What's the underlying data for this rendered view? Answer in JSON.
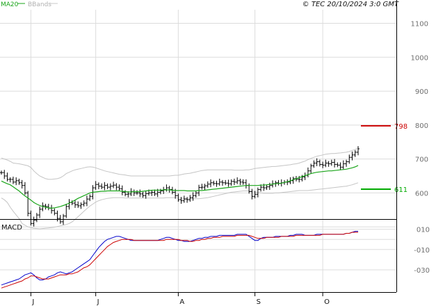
{
  "header": {
    "copyright": "© TEC 20/10/2024 3:0 GMT",
    "legend": [
      {
        "label": "MA20",
        "color": "#1aa51a"
      },
      {
        "label": "BBands",
        "color": "#b0b0b0"
      }
    ]
  },
  "chart_data": [
    {
      "type": "ohlc",
      "panel": "price",
      "yaxis_ticks": [
        600,
        700,
        800,
        900,
        1000,
        1100
      ],
      "yaxis_labels": [
        "600",
        "700",
        "800",
        "900",
        "1000",
        "1100"
      ],
      "ylim": [
        525,
        1140
      ],
      "xaxis_labels": [
        "J",
        "J",
        "A",
        "S",
        "O"
      ],
      "xaxis_label_index": [
        10,
        32,
        60,
        86,
        109
      ],
      "levels": [
        {
          "value": 798,
          "label": "798",
          "color": "#cc0000"
        },
        {
          "value": 611,
          "label": "611",
          "color": "#00aa00"
        }
      ],
      "close": [
        660,
        650,
        640,
        640,
        632,
        636,
        630,
        622,
        600,
        540,
        510,
        520,
        535,
        552,
        562,
        560,
        555,
        548,
        540,
        525,
        515,
        532,
        560,
        572,
        570,
        565,
        562,
        566,
        570,
        582,
        590,
        615,
        625,
        620,
        617,
        622,
        617,
        620,
        623,
        617,
        612,
        602,
        596,
        597,
        604,
        600,
        600,
        597,
        592,
        598,
        600,
        602,
        597,
        602,
        606,
        610,
        615,
        610,
        602,
        592,
        580,
        577,
        582,
        580,
        586,
        592,
        600,
        616,
        617,
        621,
        626,
        630,
        628,
        627,
        632,
        630,
        629,
        627,
        634,
        632,
        636,
        632,
        630,
        622,
        604,
        590,
        596,
        610,
        617,
        615,
        618,
        622,
        627,
        630,
        628,
        630,
        632,
        632,
        636,
        642,
        640,
        640,
        647,
        652,
        665,
        680,
        688,
        692,
        684,
        682,
        688,
        686,
        690,
        684,
        682,
        676,
        686,
        692,
        705,
        712,
        720,
        730
      ],
      "ma20": [
        635,
        631,
        627,
        624,
        618,
        612,
        606,
        598,
        591,
        585,
        579,
        572,
        567,
        563,
        560,
        558,
        556,
        555,
        556,
        558,
        560,
        563,
        566,
        570,
        574,
        579,
        584,
        588,
        592,
        596,
        600,
        602,
        603,
        604,
        605,
        605,
        606,
        606,
        606,
        606,
        606,
        605,
        604,
        603,
        603,
        604,
        604,
        604,
        605,
        606,
        607,
        608,
        608,
        608,
        608,
        609,
        609,
        609,
        608,
        607,
        607,
        607,
        607,
        606,
        606,
        606,
        606,
        607,
        607,
        608,
        609,
        610,
        611,
        612,
        613,
        614,
        615,
        616,
        617,
        618,
        619,
        620,
        621,
        622,
        622,
        622,
        622,
        622,
        623,
        623,
        624,
        625,
        626,
        627,
        628,
        629,
        631,
        633,
        636,
        639,
        642,
        645,
        648,
        651,
        654,
        657,
        659,
        661,
        662,
        663,
        664,
        665,
        665,
        666,
        667,
        668,
        669,
        670,
        672,
        674,
        677,
        681
      ],
      "bb_upper": [
        703,
        700,
        697,
        693,
        688,
        687,
        686,
        684,
        682,
        680,
        675,
        665,
        657,
        650,
        646,
        642,
        640,
        640,
        641,
        642,
        645,
        650,
        657,
        661,
        665,
        668,
        670,
        672,
        674,
        676,
        677,
        676,
        674,
        671,
        668,
        665,
        663,
        661,
        659,
        657,
        655,
        654,
        653,
        651,
        650,
        650,
        650,
        650,
        650,
        650,
        650,
        650,
        650,
        650,
        650,
        650,
        650,
        650,
        651,
        652,
        652,
        654,
        656,
        657,
        658,
        660,
        662,
        664,
        666,
        667,
        668,
        668,
        668,
        668,
        668,
        668,
        668,
        668,
        668,
        667,
        667,
        667,
        667,
        668,
        668,
        670,
        672,
        673,
        674,
        675,
        676,
        677,
        678,
        678,
        679,
        680,
        681,
        682,
        683,
        685,
        686,
        688,
        691,
        694,
        698,
        702,
        705,
        708,
        710,
        712,
        714,
        715,
        716,
        716,
        717,
        718,
        719,
        720,
        722,
        725,
        728,
        732
      ],
      "bb_lower": [
        585,
        580,
        572,
        558,
        546,
        535,
        525,
        510,
        505,
        500,
        498,
        496,
        495,
        494,
        495,
        496,
        497,
        498,
        499,
        501,
        503,
        505,
        507,
        510,
        515,
        522,
        530,
        538,
        546,
        554,
        561,
        567,
        573,
        577,
        580,
        582,
        584,
        585,
        586,
        586,
        586,
        586,
        585,
        585,
        585,
        585,
        585,
        585,
        585,
        585,
        585,
        585,
        585,
        585,
        585,
        585,
        586,
        586,
        586,
        586,
        585,
        585,
        584,
        583,
        583,
        583,
        583,
        583,
        584,
        585,
        586,
        588,
        590,
        592,
        594,
        596,
        598,
        600,
        602,
        603,
        604,
        605,
        606,
        606,
        606,
        605,
        603,
        601,
        600,
        599,
        599,
        599,
        599,
        600,
        600,
        601,
        602,
        603,
        604,
        605,
        606,
        607,
        607,
        607,
        607,
        608,
        609,
        610,
        611,
        612,
        613,
        614,
        615,
        616,
        617,
        618,
        619,
        620,
        622,
        624,
        627,
        630
      ]
    },
    {
      "type": "line",
      "panel": "macd",
      "title": "MACD",
      "yaxis_ticks": [
        10,
        -10,
        -30
      ],
      "yaxis_labels": [
        "010",
        "-010",
        "-030"
      ],
      "ylim": [
        -52,
        18
      ],
      "series": [
        {
          "color": "#0000cc",
          "values": [
            -45,
            -44,
            -43,
            -42,
            -41,
            -40,
            -39,
            -37,
            -35,
            -34,
            -33,
            -35,
            -38,
            -40,
            -40,
            -39,
            -37,
            -36,
            -35,
            -33,
            -32,
            -33,
            -34,
            -33,
            -32,
            -30,
            -28,
            -26,
            -24,
            -22,
            -20,
            -16,
            -12,
            -8,
            -5,
            -2,
            0,
            1,
            2,
            3,
            3,
            2,
            1,
            0,
            -1,
            -1,
            -1,
            -1,
            -1,
            -1,
            -1,
            -1,
            -1,
            -1,
            0,
            1,
            2,
            2,
            1,
            0,
            -1,
            -1,
            -2,
            -2,
            -2,
            -1,
            0,
            1,
            1,
            2,
            2,
            3,
            3,
            3,
            4,
            4,
            4,
            4,
            4,
            4,
            5,
            5,
            5,
            5,
            3,
            1,
            -1,
            -1,
            1,
            2,
            2,
            2,
            2,
            3,
            3,
            3,
            3,
            3,
            4,
            4,
            5,
            5,
            5,
            4,
            4,
            4,
            4,
            5,
            5,
            5,
            5,
            5,
            5,
            5,
            5,
            5,
            5,
            6,
            6,
            7,
            8,
            8
          ]
        },
        {
          "color": "#cc0000",
          "values": [
            -48,
            -47,
            -46,
            -45,
            -44,
            -43,
            -42,
            -41,
            -39,
            -38,
            -36,
            -36,
            -37,
            -38,
            -39,
            -39,
            -39,
            -38,
            -37,
            -36,
            -35,
            -35,
            -35,
            -34,
            -34,
            -33,
            -32,
            -30,
            -28,
            -27,
            -25,
            -22,
            -19,
            -16,
            -13,
            -10,
            -7,
            -5,
            -3,
            -2,
            -1,
            0,
            0,
            0,
            0,
            -1,
            -1,
            -1,
            -1,
            -1,
            -1,
            -1,
            -1,
            -1,
            -1,
            -1,
            0,
            0,
            0,
            0,
            0,
            -1,
            -1,
            -1,
            -2,
            -2,
            -1,
            -1,
            0,
            0,
            1,
            1,
            2,
            2,
            2,
            3,
            3,
            3,
            3,
            3,
            4,
            4,
            4,
            4,
            4,
            3,
            2,
            1,
            1,
            1,
            2,
            2,
            2,
            2,
            2,
            3,
            3,
            3,
            3,
            3,
            4,
            4,
            4,
            4,
            4,
            4,
            4,
            4,
            4,
            5,
            5,
            5,
            5,
            5,
            5,
            5,
            5,
            6,
            6,
            7,
            7,
            7
          ]
        }
      ]
    }
  ]
}
